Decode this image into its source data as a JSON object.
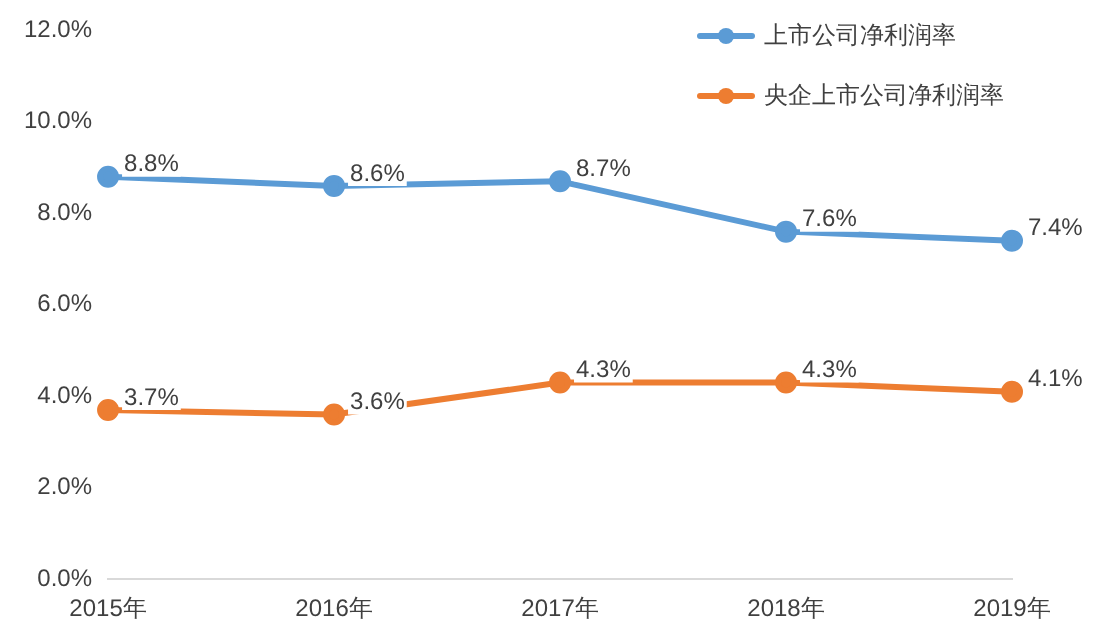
{
  "chart_data": {
    "type": "line",
    "categories": [
      "2015年",
      "2016年",
      "2017年",
      "2018年",
      "2019年"
    ],
    "series": [
      {
        "name": "上市公司净利润率",
        "color": "#5b9bd5",
        "values": [
          8.8,
          8.6,
          8.7,
          7.6,
          7.4
        ],
        "value_labels": [
          "8.8%",
          "8.6%",
          "8.7%",
          "7.6%",
          "7.4%"
        ]
      },
      {
        "name": "央企上市公司净利润率",
        "color": "#ed7d31",
        "values": [
          3.7,
          3.6,
          4.3,
          4.3,
          4.1
        ],
        "value_labels": [
          "3.7%",
          "3.6%",
          "4.3%",
          "4.3%",
          "4.1%"
        ]
      }
    ],
    "ylim": [
      0,
      12
    ],
    "yticks": [
      {
        "value": 0,
        "label": "0.0%"
      },
      {
        "value": 2,
        "label": "2.0%"
      },
      {
        "value": 4,
        "label": "4.0%"
      },
      {
        "value": 6,
        "label": "6.0%"
      },
      {
        "value": 8,
        "label": "8.0%"
      },
      {
        "value": 10,
        "label": "10.0%"
      },
      {
        "value": 12,
        "label": "12.0%"
      }
    ],
    "grid": false,
    "legend": "top right",
    "marker": "circle",
    "line_style": "solid"
  }
}
